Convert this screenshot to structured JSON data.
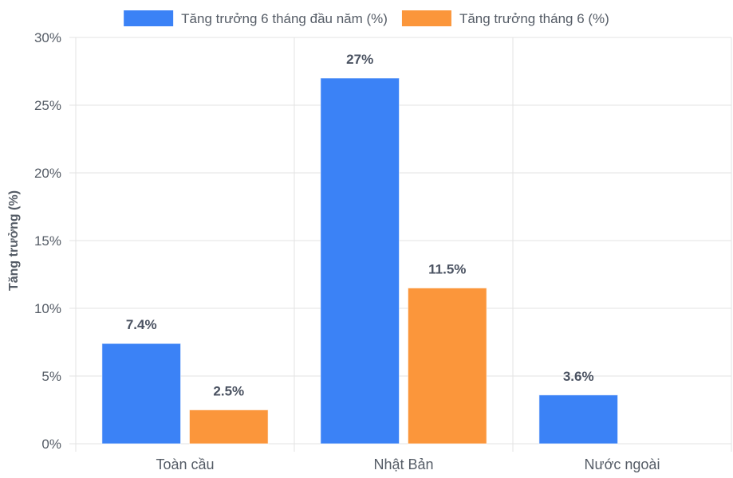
{
  "chart_data": {
    "type": "bar",
    "categories": [
      "Toàn cầu",
      "Nhật Bản",
      "Nước ngoài"
    ],
    "series": [
      {
        "name": "Tăng trưởng 6 tháng đầu năm (%)",
        "values": [
          7.4,
          27,
          3.6
        ],
        "labels": [
          "7.4%",
          "27%",
          "3.6%"
        ],
        "color": "#3b82f6"
      },
      {
        "name": "Tăng trưởng tháng 6 (%)",
        "values": [
          2.5,
          11.5,
          null
        ],
        "labels": [
          "2.5%",
          "11.5%",
          ""
        ],
        "color": "#fb963b"
      }
    ],
    "ylabel": "Tăng trưởng (%)",
    "xlabel": "",
    "ylim": [
      0,
      30
    ],
    "yticks": [
      0,
      5,
      10,
      15,
      20,
      25,
      30
    ],
    "ytick_labels": [
      "0%",
      "5%",
      "10%",
      "15%",
      "20%",
      "25%",
      "30%"
    ],
    "grid": true,
    "legend_position": "top"
  }
}
